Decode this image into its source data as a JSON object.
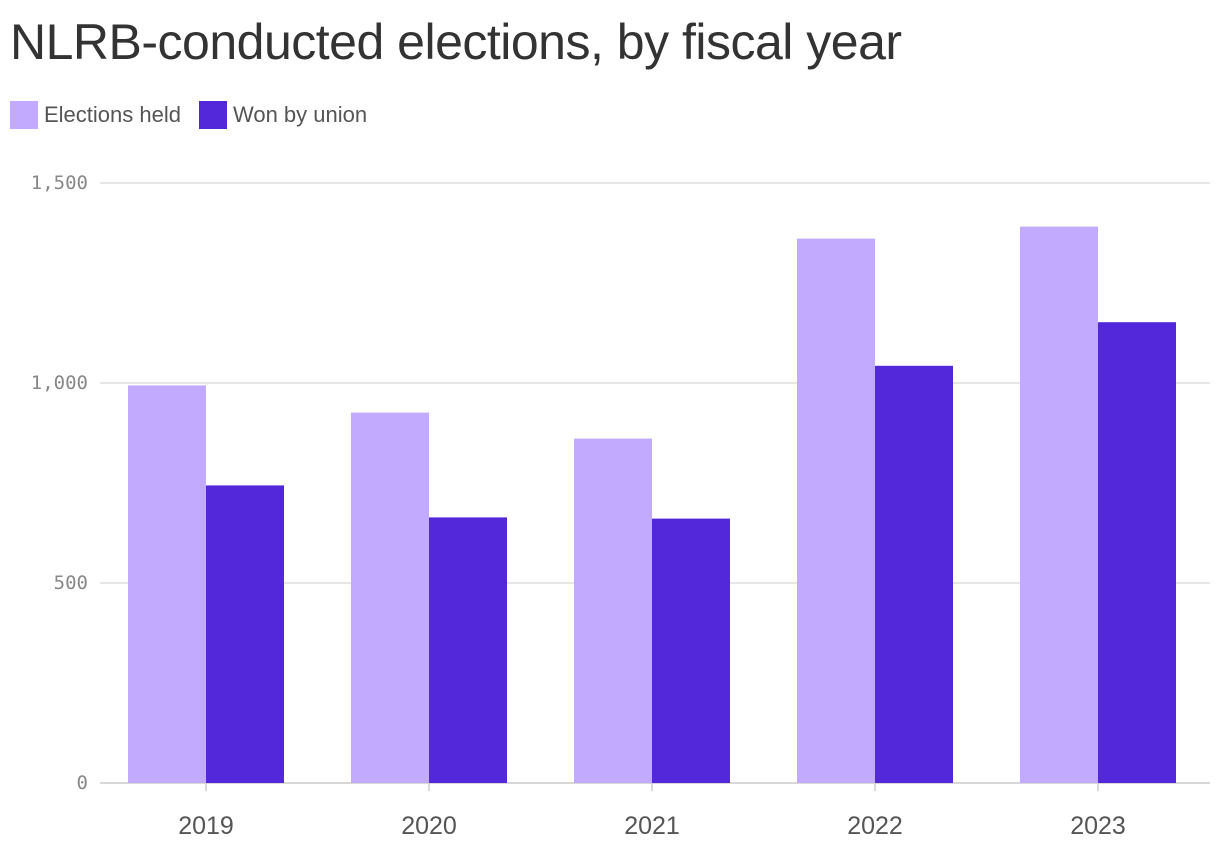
{
  "chart_data": {
    "type": "bar",
    "title": "NLRB-conducted elections, by fiscal year",
    "xlabel": "",
    "ylabel": "",
    "categories": [
      "2019",
      "2020",
      "2021",
      "2022",
      "2023"
    ],
    "series": [
      {
        "name": "Elections held",
        "color": "#c2aaff",
        "values": [
          994,
          926,
          861,
          1361,
          1391
        ]
      },
      {
        "name": "Won by union",
        "color": "#5228da",
        "values": [
          744,
          664,
          661,
          1043,
          1152
        ]
      }
    ],
    "ylim": [
      0,
      1500
    ],
    "yticks": [
      0,
      500,
      1000,
      1500
    ],
    "ytick_labels": [
      "0",
      "500",
      "1,000",
      "1,500"
    ],
    "grid": true,
    "legend": "top-left"
  }
}
